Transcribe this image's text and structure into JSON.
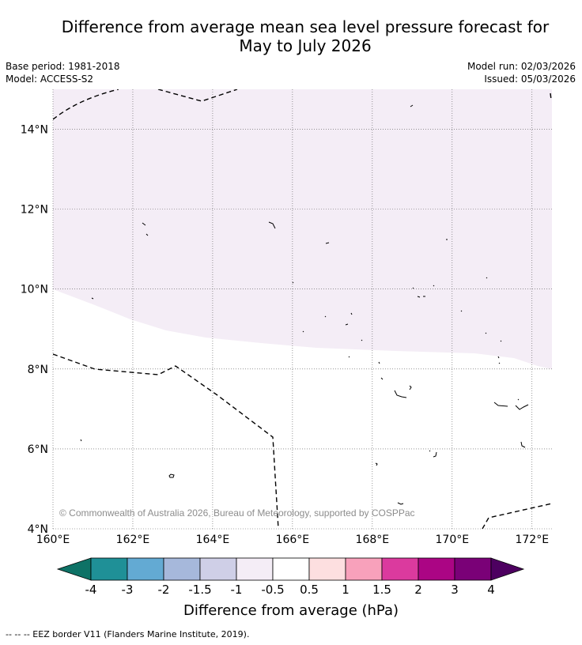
{
  "header": {
    "title_line1": "Difference from average mean sea level pressure forecast for",
    "title_line2": "May to July 2026",
    "base_period": "Base period: 1981-2018",
    "model": "Model: ACCESS-S2",
    "model_run": "Model run: 02/03/2026",
    "issued": "Issued: 05/03/2026"
  },
  "map": {
    "lon_range": [
      160,
      172.5
    ],
    "lat_range": [
      4,
      15
    ],
    "lon_ticks": [
      "160°E",
      "162°E",
      "164°E",
      "166°E",
      "168°E",
      "170°E",
      "172°E"
    ],
    "lon_tick_values": [
      160,
      162,
      164,
      166,
      168,
      170,
      172
    ],
    "lat_ticks": [
      "4°N",
      "6°N",
      "8°N",
      "10°N",
      "12°N",
      "14°N"
    ],
    "lat_tick_values": [
      4,
      6,
      8,
      10,
      12,
      14
    ],
    "shaded_category": "-1 to -0.5 hPa",
    "shaded_color": "#f4edf6",
    "copyright": "© Commonwealth of Australia 2026, Bureau of Meteorology, supported by COSPPac"
  },
  "colorbar": {
    "label": "Difference from average (hPa)",
    "tick_labels": [
      "-4",
      "-3",
      "-2",
      "-1.5",
      "-1",
      "-0.5",
      "0.5",
      "1",
      "1.5",
      "2",
      "3",
      "4"
    ],
    "colors": [
      "#0e7266",
      "#1f9097",
      "#63aad3",
      "#a6b8db",
      "#cfcfe7",
      "#f4edf6",
      "#ffffff",
      "#fddfe0",
      "#f8a1bb",
      "#db3a9e",
      "#ab0584",
      "#7a0177",
      "#4d0060"
    ]
  },
  "footer": {
    "legend_text": "-- -- -- EEZ border V11 (Flanders Marine Institute, 2019)."
  }
}
